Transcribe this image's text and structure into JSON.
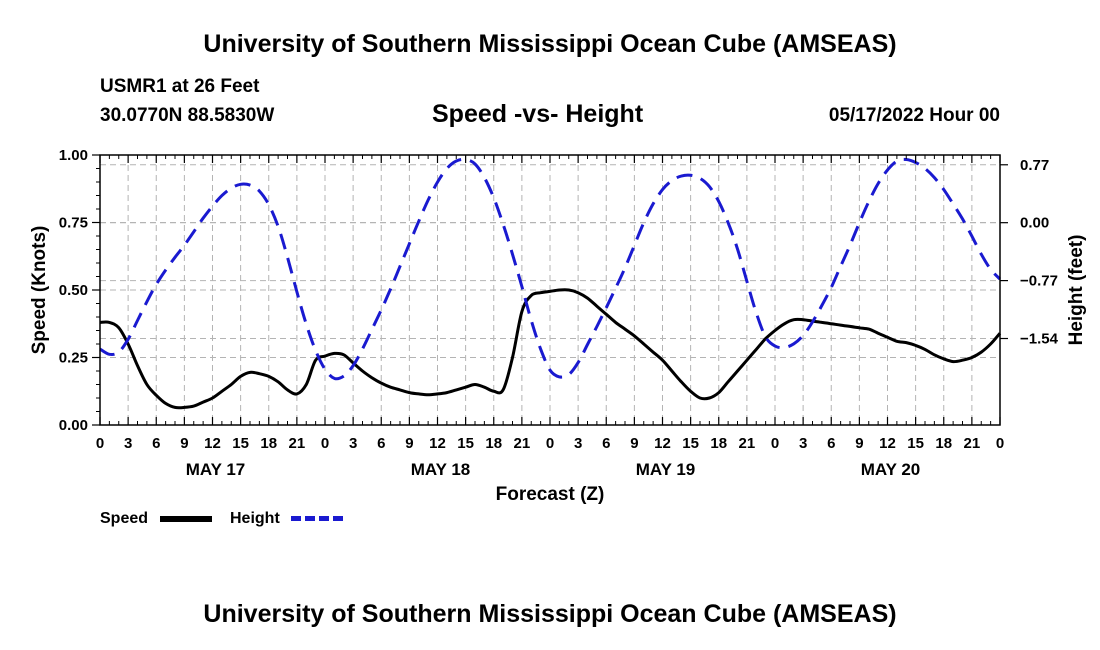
{
  "header": {
    "title": "University of Southern Mississippi Ocean Cube (AMSEAS)",
    "station": "USMR1 at 26 Feet",
    "coords": "30.0770N  88.5830W",
    "subtitle": "Speed -vs- Height",
    "date": "05/17/2022 Hour 00",
    "footer_title": "University of Southern Mississippi Ocean Cube (AMSEAS)"
  },
  "legend": {
    "speed": "Speed",
    "height": "Height"
  },
  "colors": {
    "speed": "#000000",
    "height": "#1a1ad0",
    "grid": "#b4b4b4"
  },
  "chart_data": {
    "type": "line",
    "title": "Speed -vs- Height",
    "xlabel": "Forecast (Z)",
    "ylabel": "Speed (Knots)",
    "y2label": "Height (feet)",
    "xlim": [
      0,
      96
    ],
    "ylim": [
      0,
      1.0
    ],
    "y2lim": [
      -2.69,
      0.9
    ],
    "yticks": [
      0,
      0.25,
      0.5,
      0.75,
      1.0
    ],
    "ytick_labels": [
      "0.00",
      "0.25",
      "0.50",
      "0.75",
      "1.00"
    ],
    "y2ticks": [
      0.77,
      0.0,
      -0.77,
      -1.54
    ],
    "y2tick_labels": [
      "0.77",
      "0.00",
      "−0.77",
      "−1.54"
    ],
    "xtick_labels": [
      "0",
      "3",
      "6",
      "9",
      "12",
      "15",
      "18",
      "21",
      "0",
      "3",
      "6",
      "9",
      "12",
      "15",
      "18",
      "21",
      "0",
      "3",
      "6",
      "9",
      "12",
      "15",
      "18",
      "21",
      "0",
      "3",
      "6",
      "9",
      "12",
      "15",
      "18",
      "21",
      "0"
    ],
    "day_labels": [
      "MAY 17",
      "MAY 18",
      "MAY 19",
      "MAY 20"
    ],
    "grid": true,
    "legend": "bottom-left",
    "series": [
      {
        "name": "Speed",
        "axis": "left",
        "style": "solid",
        "x": [
          0,
          1,
          2,
          3,
          4,
          5,
          6,
          7,
          8,
          9,
          10,
          11,
          12,
          13,
          14,
          15,
          16,
          17,
          18,
          19,
          20,
          21,
          22,
          23,
          24,
          25,
          26,
          27,
          28,
          29,
          30,
          31,
          32,
          33,
          34,
          35,
          36,
          37,
          38,
          39,
          40,
          41,
          42,
          43,
          44,
          45,
          46,
          47,
          48,
          49,
          50,
          51,
          52,
          53,
          54,
          55,
          56,
          57,
          58,
          59,
          60,
          61,
          62,
          63,
          64,
          65,
          66,
          67,
          68,
          69,
          70,
          71,
          72,
          73,
          74,
          75,
          76,
          77,
          78,
          79,
          80,
          81,
          82,
          83,
          84,
          85,
          86,
          87,
          88,
          89,
          90,
          91,
          92,
          93,
          94,
          95,
          96
        ],
        "values": [
          0.38,
          0.38,
          0.36,
          0.3,
          0.22,
          0.15,
          0.11,
          0.08,
          0.065,
          0.065,
          0.07,
          0.085,
          0.1,
          0.125,
          0.15,
          0.18,
          0.195,
          0.19,
          0.18,
          0.16,
          0.13,
          0.115,
          0.15,
          0.24,
          0.255,
          0.265,
          0.26,
          0.23,
          0.2,
          0.175,
          0.155,
          0.14,
          0.13,
          0.12,
          0.115,
          0.112,
          0.115,
          0.12,
          0.13,
          0.14,
          0.15,
          0.14,
          0.125,
          0.13,
          0.25,
          0.42,
          0.48,
          0.49,
          0.495,
          0.5,
          0.5,
          0.49,
          0.47,
          0.44,
          0.41,
          0.38,
          0.355,
          0.33,
          0.3,
          0.27,
          0.24,
          0.2,
          0.16,
          0.125,
          0.1,
          0.1,
          0.12,
          0.16,
          0.2,
          0.24,
          0.28,
          0.32,
          0.35,
          0.375,
          0.39,
          0.39,
          0.385,
          0.38,
          0.375,
          0.37,
          0.365,
          0.36,
          0.355,
          0.34,
          0.325,
          0.31,
          0.305,
          0.295,
          0.28,
          0.26,
          0.245,
          0.235,
          0.24,
          0.25,
          0.27,
          0.3,
          0.34
        ]
      },
      {
        "name": "Height",
        "axis": "right",
        "style": "dashed",
        "x": [
          0,
          1,
          2,
          3,
          4,
          5,
          6,
          7,
          8,
          9,
          10,
          11,
          12,
          13,
          14,
          15,
          16,
          17,
          18,
          19,
          20,
          21,
          22,
          23,
          24,
          25,
          26,
          27,
          28,
          29,
          30,
          31,
          32,
          33,
          34,
          35,
          36,
          37,
          38,
          39,
          40,
          41,
          42,
          43,
          44,
          45,
          46,
          47,
          48,
          49,
          50,
          51,
          52,
          53,
          54,
          55,
          56,
          57,
          58,
          59,
          60,
          61,
          62,
          63,
          64,
          65,
          66,
          67,
          68,
          69,
          70,
          71,
          72,
          73,
          74,
          75,
          76,
          77,
          78,
          79,
          80,
          81,
          82,
          83,
          84,
          85,
          86,
          87,
          88,
          89,
          90,
          91,
          92,
          93,
          94,
          95,
          96
        ],
        "values": [
          -1.68,
          -1.75,
          -1.72,
          -1.55,
          -1.3,
          -1.05,
          -0.82,
          -0.63,
          -0.46,
          -0.3,
          -0.12,
          0.06,
          0.22,
          0.36,
          0.46,
          0.51,
          0.5,
          0.42,
          0.24,
          -0.05,
          -0.46,
          -0.92,
          -1.35,
          -1.7,
          -1.95,
          -2.07,
          -2.04,
          -1.9,
          -1.68,
          -1.42,
          -1.16,
          -0.88,
          -0.58,
          -0.28,
          0.02,
          0.3,
          0.54,
          0.72,
          0.82,
          0.84,
          0.78,
          0.6,
          0.33,
          -0.02,
          -0.42,
          -0.85,
          -1.3,
          -1.68,
          -1.96,
          -2.05,
          -2.02,
          -1.86,
          -1.62,
          -1.38,
          -1.13,
          -0.87,
          -0.6,
          -0.3,
          0.0,
          0.25,
          0.44,
          0.56,
          0.62,
          0.63,
          0.59,
          0.48,
          0.28,
          0.0,
          -0.35,
          -0.78,
          -1.2,
          -1.52,
          -1.64,
          -1.66,
          -1.61,
          -1.5,
          -1.32,
          -1.1,
          -0.86,
          -0.58,
          -0.3,
          0.0,
          0.28,
          0.52,
          0.7,
          0.82,
          0.84,
          0.8,
          0.72,
          0.6,
          0.44,
          0.25,
          0.05,
          -0.18,
          -0.42,
          -0.62,
          -0.75
        ]
      }
    ]
  }
}
